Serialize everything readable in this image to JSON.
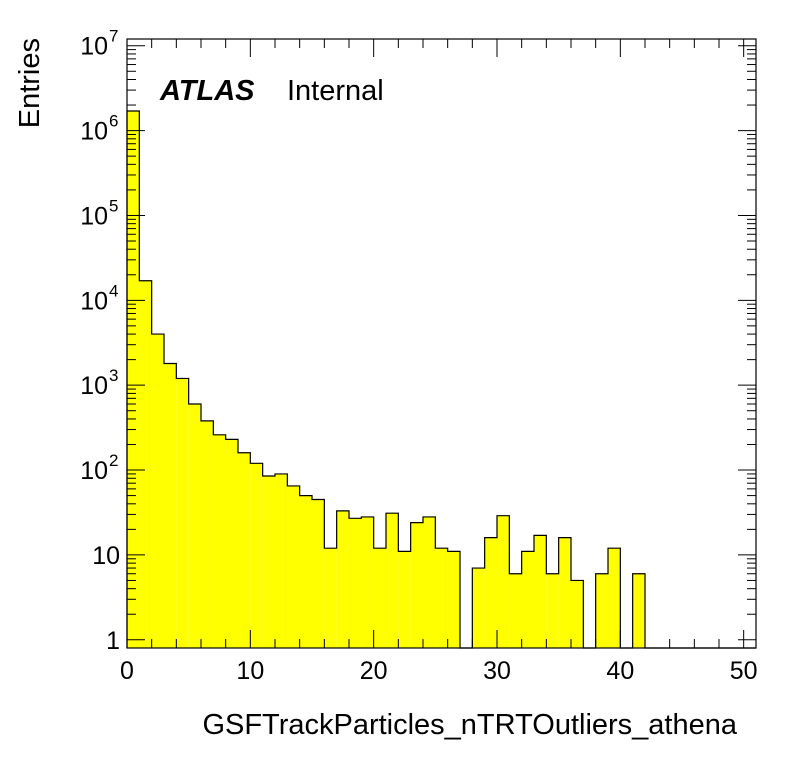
{
  "chart_data": {
    "type": "bar",
    "histogram": true,
    "xlabel": "GSFTrackParticles_nTRTOutliers_athena",
    "ylabel": "Entries",
    "annotation": {
      "bold": "ATLAS",
      "regular": "Internal"
    },
    "xlim": [
      0,
      51
    ],
    "ylim": [
      0.8,
      12000000
    ],
    "y_scale": "log",
    "grid": false,
    "fill_color": "#ffff00",
    "line_color": "#000000",
    "x_ticks": [
      {
        "value": 0,
        "label": "0"
      },
      {
        "value": 10,
        "label": "10"
      },
      {
        "value": 20,
        "label": "20"
      },
      {
        "value": 30,
        "label": "30"
      },
      {
        "value": 40,
        "label": "40"
      },
      {
        "value": 50,
        "label": "50"
      }
    ],
    "y_ticks": [
      {
        "value": 1,
        "base": "1",
        "exp": ""
      },
      {
        "value": 10,
        "base": "10",
        "exp": ""
      },
      {
        "value": 100,
        "base": "10",
        "exp": "2"
      },
      {
        "value": 1000,
        "base": "10",
        "exp": "3"
      },
      {
        "value": 10000,
        "base": "10",
        "exp": "4"
      },
      {
        "value": 100000,
        "base": "10",
        "exp": "5"
      },
      {
        "value": 1000000,
        "base": "10",
        "exp": "6"
      },
      {
        "value": 10000000,
        "base": "10",
        "exp": "7"
      }
    ],
    "bin_width": 1,
    "values": [
      1700000,
      17000,
      4000,
      1800,
      1200,
      600,
      380,
      260,
      230,
      160,
      120,
      85,
      90,
      65,
      50,
      45,
      12,
      33,
      27,
      28,
      12,
      31,
      11,
      24,
      28,
      12,
      11,
      0,
      7,
      16,
      29,
      6,
      11,
      17,
      6,
      16,
      5,
      0,
      6,
      12,
      0,
      6,
      0,
      0,
      0,
      0,
      0,
      0,
      0,
      0,
      0
    ]
  }
}
